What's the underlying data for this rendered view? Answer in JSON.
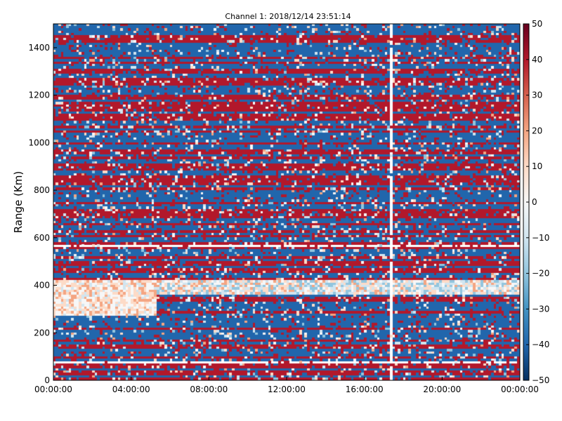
{
  "chart_data": {
    "type": "heatmap",
    "title": "Channel 1: 2018/12/14 23:51:14",
    "xlabel": "",
    "ylabel": "Range (Km)",
    "x_ticks": [
      "00:00:00",
      "04:00:00",
      "08:00:00",
      "12:00:00",
      "16:00:00",
      "20:00:00",
      "00:00:00"
    ],
    "x_range_hours": [
      0,
      24
    ],
    "y_ticks": [
      "0",
      "200",
      "400",
      "600",
      "800",
      "1000",
      "1200",
      "1400"
    ],
    "ylim": [
      0,
      1500
    ],
    "colorbar": {
      "ticks": [
        "50",
        "40",
        "30",
        "20",
        "10",
        "0",
        "−10",
        "−20",
        "−30",
        "−40",
        "−50"
      ],
      "range": [
        -50,
        50
      ],
      "colormap": "RdBu_r",
      "colors": [
        "#053061",
        "#2166ac",
        "#4393c3",
        "#92c5de",
        "#d1e5f0",
        "#f7f7f7",
        "#fddbc7",
        "#f4a582",
        "#d6604d",
        "#b2182b",
        "#67001f"
      ]
    },
    "features": {
      "gap_x_hour": 17.3,
      "blank_row_ranges_km": [
        75,
        140,
        160,
        390,
        570,
        600,
        760,
        850,
        1000,
        1060,
        1080,
        1100
      ],
      "low_value_band_km": [
        360,
        420
      ],
      "grid": false
    }
  }
}
